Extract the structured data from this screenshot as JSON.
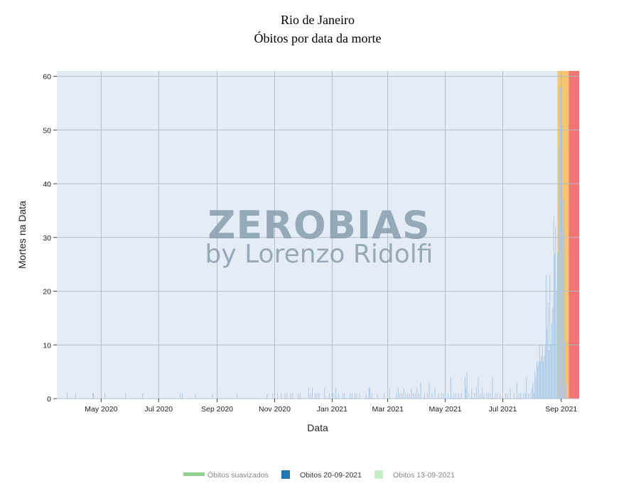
{
  "chart_data": {
    "type": "bar",
    "title": "Rio de Janeiro",
    "subtitle": "Óbitos por data da morte",
    "xlabel": "Data",
    "ylabel": "Mortes na Data",
    "xlim": [
      "2020-03-15",
      "2021-09-20"
    ],
    "ylim": [
      0,
      61
    ],
    "y_ticks": [
      0,
      10,
      20,
      30,
      40,
      50,
      60
    ],
    "x_ticks": [
      {
        "date": "2020-05-01",
        "label": "May 2020"
      },
      {
        "date": "2020-07-01",
        "label": "Jul 2020"
      },
      {
        "date": "2020-09-01",
        "label": "Sep 2020"
      },
      {
        "date": "2020-11-01",
        "label": "Nov 2020"
      },
      {
        "date": "2021-01-01",
        "label": "Jan 2021"
      },
      {
        "date": "2021-03-01",
        "label": "Mar 2021"
      },
      {
        "date": "2021-05-01",
        "label": "May 2021"
      },
      {
        "date": "2021-07-01",
        "label": "Jul 2021"
      },
      {
        "date": "2021-09-01",
        "label": "Sep 2021"
      }
    ],
    "grid": true,
    "shaded_regions": [
      {
        "start": "2021-08-28",
        "end": "2021-09-09",
        "color": "#f5c46b"
      },
      {
        "start": "2021-09-09",
        "end": "2021-09-20",
        "color": "#f27474"
      }
    ],
    "series": [
      {
        "name": "Óbitos suavizados",
        "color": "#8fd18f",
        "legend_text_color": "#888888",
        "style": "line",
        "values": []
      },
      {
        "name": "Obitos 20-09-2021",
        "color": "#a7c7e7",
        "legend_color": "#1f77b4",
        "legend_text_color": "#333333",
        "style": "bar",
        "values": [
          [
            "2020-03-26",
            1
          ],
          [
            "2020-04-04",
            1
          ],
          [
            "2020-04-22",
            1
          ],
          [
            "2020-04-23",
            1
          ],
          [
            "2020-05-05",
            1
          ],
          [
            "2020-05-27",
            1
          ],
          [
            "2020-06-14",
            1
          ],
          [
            "2020-07-24",
            1
          ],
          [
            "2020-07-26",
            1
          ],
          [
            "2020-08-09",
            1
          ],
          [
            "2020-08-27",
            1
          ],
          [
            "2020-09-01",
            2
          ],
          [
            "2020-09-22",
            1
          ],
          [
            "2020-10-24",
            1
          ],
          [
            "2020-10-30",
            1
          ],
          [
            "2020-11-04",
            1
          ],
          [
            "2020-11-08",
            1
          ],
          [
            "2020-11-12",
            1
          ],
          [
            "2020-11-14",
            1
          ],
          [
            "2020-11-18",
            1
          ],
          [
            "2020-11-20",
            1
          ],
          [
            "2020-11-26",
            1
          ],
          [
            "2020-11-28",
            1
          ],
          [
            "2020-12-07",
            2
          ],
          [
            "2020-12-09",
            1
          ],
          [
            "2020-12-11",
            2
          ],
          [
            "2020-12-14",
            1
          ],
          [
            "2020-12-16",
            1
          ],
          [
            "2020-12-18",
            1
          ],
          [
            "2020-12-24",
            2
          ],
          [
            "2020-12-29",
            1
          ],
          [
            "2021-01-02",
            1
          ],
          [
            "2021-01-05",
            2
          ],
          [
            "2021-01-08",
            1
          ],
          [
            "2021-01-12",
            1
          ],
          [
            "2021-01-14",
            1
          ],
          [
            "2021-01-20",
            1
          ],
          [
            "2021-01-22",
            1
          ],
          [
            "2021-01-25",
            1
          ],
          [
            "2021-01-27",
            1
          ],
          [
            "2021-01-30",
            1
          ],
          [
            "2021-02-06",
            1
          ],
          [
            "2021-02-09",
            2
          ],
          [
            "2021-02-10",
            2
          ],
          [
            "2021-02-12",
            1
          ],
          [
            "2021-02-18",
            1
          ],
          [
            "2021-02-25",
            1
          ],
          [
            "2021-03-03",
            2
          ],
          [
            "2021-03-10",
            1
          ],
          [
            "2021-03-12",
            2
          ],
          [
            "2021-03-14",
            1
          ],
          [
            "2021-03-16",
            1
          ],
          [
            "2021-03-18",
            2
          ],
          [
            "2021-03-20",
            1
          ],
          [
            "2021-03-22",
            1
          ],
          [
            "2021-03-24",
            1
          ],
          [
            "2021-03-26",
            2
          ],
          [
            "2021-03-28",
            1
          ],
          [
            "2021-03-30",
            1
          ],
          [
            "2021-04-01",
            2
          ],
          [
            "2021-04-03",
            1
          ],
          [
            "2021-04-05",
            3
          ],
          [
            "2021-04-09",
            1
          ],
          [
            "2021-04-12",
            1
          ],
          [
            "2021-04-14",
            3
          ],
          [
            "2021-04-17",
            1
          ],
          [
            "2021-04-20",
            2
          ],
          [
            "2021-04-24",
            1
          ],
          [
            "2021-04-27",
            1
          ],
          [
            "2021-04-29",
            1
          ],
          [
            "2021-05-01",
            1
          ],
          [
            "2021-05-04",
            1
          ],
          [
            "2021-05-07",
            4
          ],
          [
            "2021-05-10",
            1
          ],
          [
            "2021-05-12",
            1
          ],
          [
            "2021-05-15",
            1
          ],
          [
            "2021-05-18",
            1
          ],
          [
            "2021-05-22",
            4
          ],
          [
            "2021-05-23",
            2
          ],
          [
            "2021-05-24",
            5
          ],
          [
            "2021-05-26",
            1
          ],
          [
            "2021-05-29",
            2
          ],
          [
            "2021-06-01",
            1
          ],
          [
            "2021-06-03",
            2
          ],
          [
            "2021-06-05",
            4
          ],
          [
            "2021-06-07",
            1
          ],
          [
            "2021-06-09",
            2
          ],
          [
            "2021-06-11",
            1
          ],
          [
            "2021-06-14",
            1
          ],
          [
            "2021-06-16",
            1
          ],
          [
            "2021-06-18",
            1
          ],
          [
            "2021-06-20",
            4
          ],
          [
            "2021-06-23",
            1
          ],
          [
            "2021-06-25",
            1
          ],
          [
            "2021-06-28",
            1
          ],
          [
            "2021-07-01",
            1
          ],
          [
            "2021-07-04",
            1
          ],
          [
            "2021-07-06",
            1
          ],
          [
            "2021-07-09",
            2
          ],
          [
            "2021-07-13",
            1
          ],
          [
            "2021-07-16",
            3
          ],
          [
            "2021-07-18",
            1
          ],
          [
            "2021-07-20",
            1
          ],
          [
            "2021-07-23",
            1
          ],
          [
            "2021-07-25",
            1
          ],
          [
            "2021-07-26",
            4
          ],
          [
            "2021-07-28",
            1
          ],
          [
            "2021-07-30",
            1
          ],
          [
            "2021-08-01",
            2
          ],
          [
            "2021-08-02",
            3
          ],
          [
            "2021-08-03",
            1
          ],
          [
            "2021-08-04",
            5
          ],
          [
            "2021-08-05",
            4
          ],
          [
            "2021-08-06",
            7
          ],
          [
            "2021-08-07",
            6
          ],
          [
            "2021-08-08",
            7
          ],
          [
            "2021-08-09",
            10
          ],
          [
            "2021-08-10",
            7
          ],
          [
            "2021-08-11",
            8
          ],
          [
            "2021-08-12",
            10
          ],
          [
            "2021-08-13",
            7
          ],
          [
            "2021-08-14",
            8
          ],
          [
            "2021-08-15",
            10
          ],
          [
            "2021-08-16",
            23
          ],
          [
            "2021-08-17",
            13
          ],
          [
            "2021-08-18",
            18
          ],
          [
            "2021-08-19",
            9
          ],
          [
            "2021-08-20",
            23
          ],
          [
            "2021-08-21",
            10
          ],
          [
            "2021-08-22",
            14
          ],
          [
            "2021-08-23",
            17
          ],
          [
            "2021-08-24",
            34
          ],
          [
            "2021-08-25",
            27
          ],
          [
            "2021-08-26",
            32
          ],
          [
            "2021-08-27",
            20
          ],
          [
            "2021-08-28",
            27
          ],
          [
            "2021-08-29",
            32
          ],
          [
            "2021-08-30",
            47
          ],
          [
            "2021-08-31",
            58
          ],
          [
            "2021-09-01",
            58
          ],
          [
            "2021-09-02",
            51
          ],
          [
            "2021-09-03",
            37
          ],
          [
            "2021-09-04",
            31
          ],
          [
            "2021-09-05",
            11
          ],
          [
            "2021-09-06",
            3
          ]
        ]
      },
      {
        "name": "Obitos 13-09-2021",
        "color": "#c7ecc7",
        "legend_text_color": "#888888",
        "style": "bar",
        "values": []
      }
    ],
    "legend_position": "bottom-center"
  },
  "watermark": {
    "line1": "ZEROBIAS",
    "line2": "by Lorenzo Ridolfi"
  }
}
